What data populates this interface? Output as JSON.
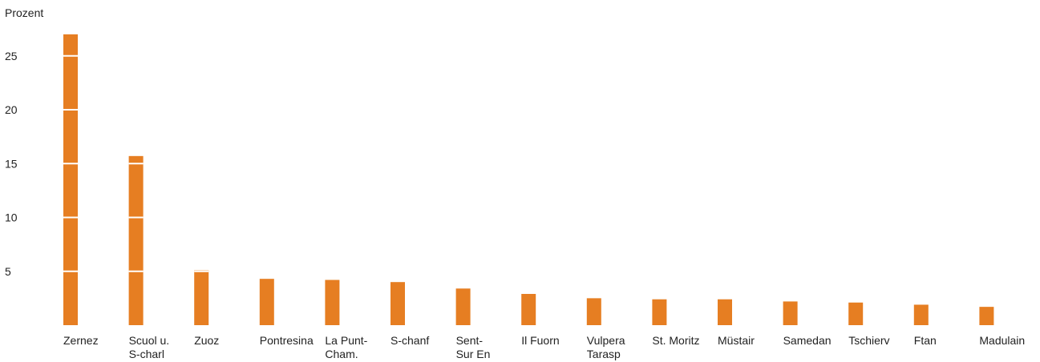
{
  "chart_data": {
    "type": "bar",
    "ylabel": "Prozent",
    "yticks": [
      5,
      10,
      15,
      20,
      25
    ],
    "ylim": [
      0,
      27
    ],
    "grid": false,
    "bar_color": "#e67e22",
    "separator_color": "#ffffff",
    "categories": [
      [
        "Zernez"
      ],
      [
        "Scuol u.",
        "S-charl"
      ],
      [
        "Zuoz"
      ],
      [
        "Pontresina"
      ],
      [
        "La Punt-",
        "Cham."
      ],
      [
        "S-chanf"
      ],
      [
        "Sent-",
        "Sur En"
      ],
      [
        "Il Fuorn"
      ],
      [
        "Vulpera",
        "Tarasp"
      ],
      [
        "St. Moritz"
      ],
      [
        "Müstair"
      ],
      [
        "Samedan"
      ],
      [
        "Tschierv"
      ],
      [
        "Ftan"
      ],
      [
        "Madulain"
      ]
    ],
    "values": [
      27.0,
      15.7,
      5.1,
      4.3,
      4.2,
      4.0,
      3.4,
      2.9,
      2.5,
      2.4,
      2.4,
      2.2,
      2.1,
      1.9,
      1.7
    ]
  }
}
